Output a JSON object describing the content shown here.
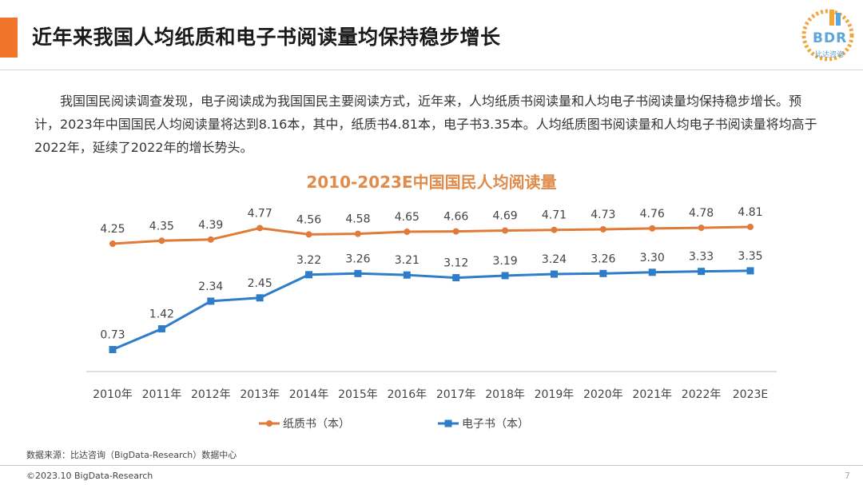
{
  "header": {
    "title": "近年来我国人均纸质和电子书阅读量均保持稳步增长",
    "accent_color": "#f0742a"
  },
  "logo": {
    "text": "BDR",
    "subtext": "比达咨询"
  },
  "intro": "我国国民阅读调查发现，电子阅读成为我国国民主要阅读方式，近年来，人均纸质书阅读量和人均电子书阅读量均保持稳步增长。预计，2023年中国国民人均阅读量将达到8.16本，其中，纸质书4.81本，电子书3.35本。人均纸质图书阅读量和人均电子书阅读量将均高于2022年，延续了2022年的增长势头。",
  "chart_data": {
    "type": "line",
    "title": "2010-2023E中国国民人均阅读量",
    "categories": [
      "2010年",
      "2011年",
      "2012年",
      "2013年",
      "2014年",
      "2015年",
      "2016年",
      "2017年",
      "2018年",
      "2019年",
      "2020年",
      "2021年",
      "2022年",
      "2023E"
    ],
    "series": [
      {
        "name": "纸质书（本）",
        "color": "#e07b39",
        "marker": "circle",
        "values": [
          4.25,
          4.35,
          4.39,
          4.77,
          4.56,
          4.58,
          4.65,
          4.66,
          4.69,
          4.71,
          4.73,
          4.76,
          4.78,
          4.81
        ]
      },
      {
        "name": "电子书（本）",
        "color": "#2e7dc8",
        "marker": "square",
        "values": [
          0.73,
          1.42,
          2.34,
          2.45,
          3.22,
          3.26,
          3.21,
          3.12,
          3.19,
          3.24,
          3.26,
          3.3,
          3.33,
          3.35
        ]
      }
    ],
    "ylim": [
      0,
      5.5
    ],
    "grid": false,
    "legend_position": "bottom"
  },
  "footer": {
    "source": "数据来源：比达咨询（BigData-Research）数据中心",
    "copyright": "©2023.10 BigData-Research",
    "page_number": "7"
  }
}
